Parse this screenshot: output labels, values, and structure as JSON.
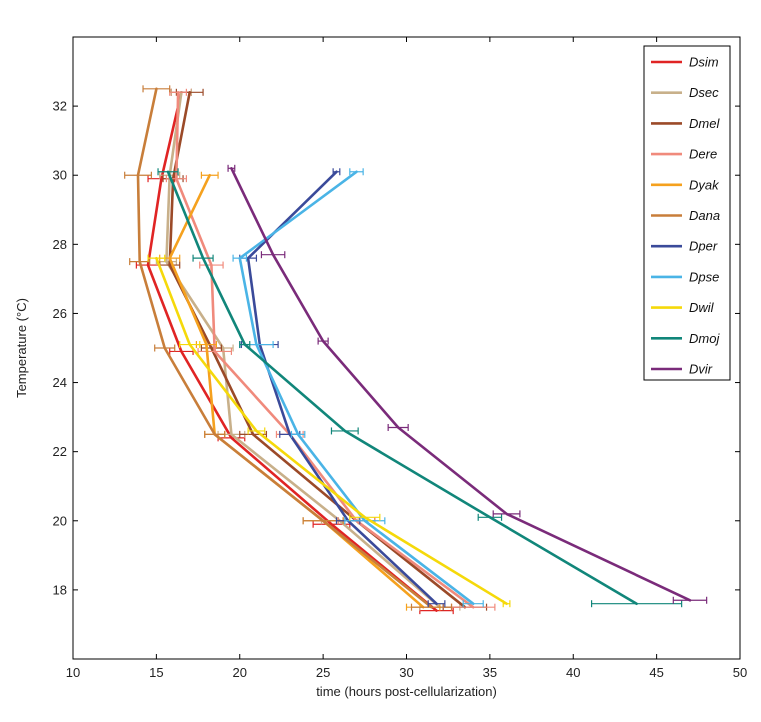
{
  "chart_data": {
    "type": "line",
    "title": "",
    "xlabel": "time (hours post-cellularization)",
    "ylabel": "Temperature (°C)",
    "xlim": [
      10,
      50
    ],
    "ylim": [
      16,
      34
    ],
    "xticks": [
      10,
      15,
      20,
      25,
      30,
      35,
      40,
      45,
      50
    ],
    "yticks": [
      18,
      20,
      22,
      24,
      26,
      28,
      30,
      32
    ],
    "legend_position": "top-right",
    "grid": false,
    "series": [
      {
        "name": "Dsim",
        "color": "#e02424",
        "points": [
          [
            16.5,
            32.4
          ],
          [
            15.3,
            29.9
          ],
          [
            14.5,
            27.4
          ],
          [
            16.5,
            24.9
          ],
          [
            19.5,
            22.4
          ],
          [
            25.5,
            19.9
          ],
          [
            31.8,
            17.4
          ]
        ],
        "xerr": [
          0.6,
          0.8,
          0.7,
          0.7,
          0.8,
          1.1,
          1.0
        ]
      },
      {
        "name": "Dsec",
        "color": "#c8b08a",
        "points": [
          [
            16.5,
            32.4
          ],
          [
            15.8,
            30.0
          ],
          [
            15.6,
            27.5
          ],
          [
            19.0,
            25.0
          ],
          [
            19.5,
            22.5
          ],
          [
            26.0,
            20.0
          ],
          [
            32.0,
            17.5
          ]
        ],
        "xerr": [
          0.6,
          0.6,
          0.6,
          0.6,
          0.8,
          1.1,
          1.2
        ]
      },
      {
        "name": "Dmel",
        "color": "#9b4a28",
        "points": [
          [
            17.0,
            32.4
          ],
          [
            16.0,
            29.9
          ],
          [
            15.8,
            27.4
          ],
          [
            18.3,
            25.0
          ],
          [
            20.8,
            22.5
          ],
          [
            27.0,
            20.0
          ],
          [
            33.5,
            17.5
          ]
        ],
        "xerr": [
          0.8,
          0.6,
          0.6,
          0.6,
          0.8,
          1.1,
          1.3
        ]
      },
      {
        "name": "Dere",
        "color": "#f08a7c",
        "points": [
          [
            16.3,
            32.4
          ],
          [
            16.2,
            29.9
          ],
          [
            18.3,
            27.4
          ],
          [
            18.5,
            24.9
          ],
          [
            23.0,
            22.5
          ],
          [
            27.0,
            20.0
          ],
          [
            34.0,
            17.5
          ]
        ],
        "xerr": [
          0.5,
          0.6,
          0.7,
          1.0,
          0.8,
          1.1,
          1.3
        ]
      },
      {
        "name": "Dyak",
        "color": "#f5a11e",
        "points": [
          [
            18.2,
            30.0
          ],
          [
            15.8,
            27.6
          ],
          [
            18.0,
            25.1
          ],
          [
            18.5,
            22.5
          ],
          [
            25.0,
            20.0
          ],
          [
            31.0,
            17.5
          ]
        ],
        "xerr": [
          0.5,
          0.6,
          0.6,
          0.6,
          1.2,
          1.0
        ]
      },
      {
        "name": "Dana",
        "color": "#c87e3a",
        "points": [
          [
            15.0,
            32.5
          ],
          [
            13.9,
            30.0
          ],
          [
            14.0,
            27.5
          ],
          [
            15.5,
            25.0
          ],
          [
            18.5,
            22.5
          ],
          [
            25.0,
            20.0
          ],
          [
            31.5,
            17.5
          ]
        ],
        "xerr": [
          0.8,
          0.8,
          0.6,
          0.6,
          0.6,
          1.2,
          1.2
        ]
      },
      {
        "name": "Dper",
        "color": "#3a4a9a",
        "points": [
          [
            25.8,
            30.1
          ],
          [
            20.5,
            27.6
          ],
          [
            21.2,
            25.1
          ],
          [
            23.0,
            22.5
          ],
          [
            26.5,
            20.0
          ],
          [
            31.8,
            17.6
          ]
        ],
        "xerr": [
          0.2,
          0.5,
          1.1,
          0.6,
          0.7,
          0.5
        ]
      },
      {
        "name": "Dpse",
        "color": "#4ab4e6",
        "points": [
          [
            27.0,
            30.1
          ],
          [
            20.0,
            27.6
          ],
          [
            21.0,
            25.1
          ],
          [
            23.5,
            22.5
          ],
          [
            27.5,
            20.0
          ],
          [
            34.0,
            17.6
          ]
        ],
        "xerr": [
          0.4,
          0.4,
          1.0,
          0.4,
          1.2,
          0.6
        ]
      },
      {
        "name": "Dwil",
        "color": "#f5d90a",
        "points": [
          [
            15.0,
            27.6
          ],
          [
            17.0,
            25.1
          ],
          [
            21.0,
            22.6
          ],
          [
            27.5,
            20.1
          ],
          [
            36.0,
            17.6
          ]
        ],
        "xerr": [
          0.5,
          0.6,
          0.5,
          0.9,
          0.2
        ]
      },
      {
        "name": "Dmoj",
        "color": "#11867a",
        "points": [
          [
            15.7,
            30.1
          ],
          [
            17.8,
            27.6
          ],
          [
            20.3,
            25.1
          ],
          [
            26.3,
            22.6
          ],
          [
            35.0,
            20.1
          ],
          [
            43.8,
            17.6
          ]
        ],
        "xerr": [
          0.6,
          0.6,
          0.3,
          0.8,
          0.7,
          2.7
        ]
      },
      {
        "name": "Dvir",
        "color": "#7a2b7a",
        "points": [
          [
            19.5,
            30.2
          ],
          [
            22.0,
            27.7
          ],
          [
            25.0,
            25.2
          ],
          [
            29.5,
            22.7
          ],
          [
            36.0,
            20.2
          ],
          [
            47.0,
            17.7
          ]
        ],
        "xerr": [
          0.2,
          0.7,
          0.3,
          0.6,
          0.8,
          1.0
        ]
      }
    ]
  }
}
